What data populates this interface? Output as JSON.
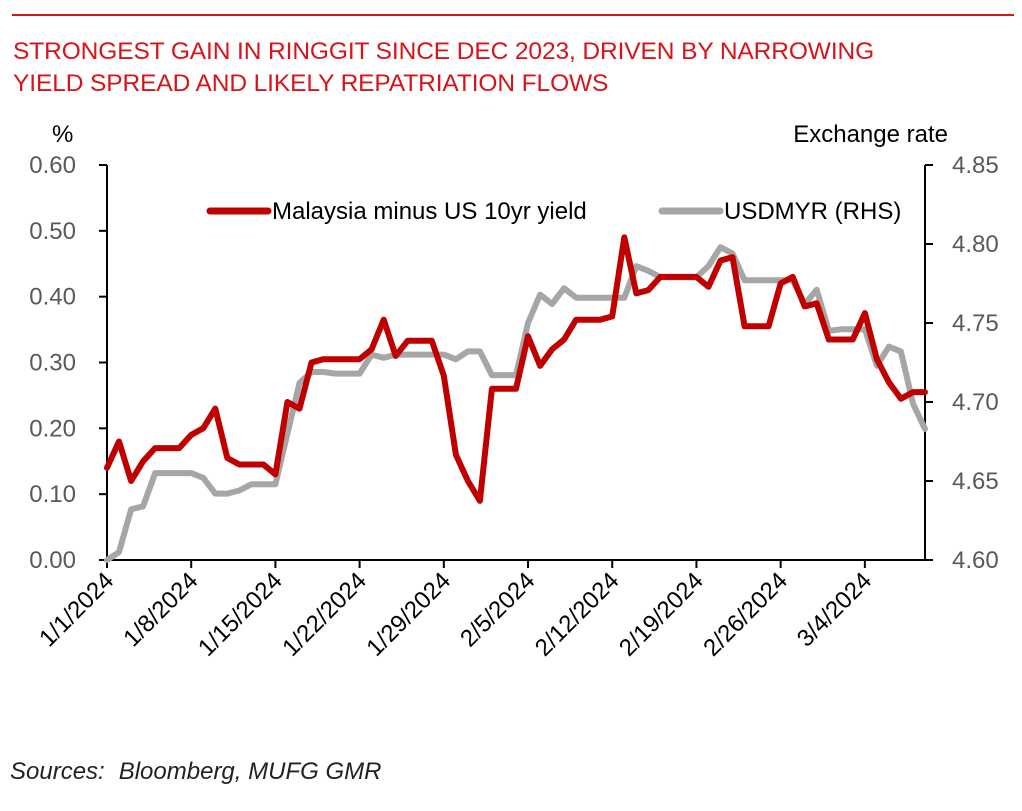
{
  "header": {
    "title_line1": "STRONGEST GAIN IN RINGGIT SINCE DEC 2023, DRIVEN BY NARROWING",
    "title_line2": "YIELD SPREAD AND LIKELY REPATRIATION FLOWS"
  },
  "footer": {
    "sources_label": "Sources:",
    "sources_text": "Bloomberg, MUFG GMR"
  },
  "colors": {
    "accent_red": "#d7141a",
    "series_spread": "#c00000",
    "series_usdmyr": "#a6a6a6",
    "axis": "#000000"
  },
  "chart_data": {
    "type": "line",
    "title": "STRONGEST GAIN IN RINGGIT SINCE DEC 2023, DRIVEN BY NARROWING YIELD SPREAD AND LIKELY REPATRIATION FLOWS",
    "ylabel_left": "%",
    "ylabel_right": "Exchange rate",
    "ylim_left": [
      0,
      0.6
    ],
    "ylim_right": [
      4.6,
      4.85
    ],
    "yticks_left": [
      "0.00",
      "0.10",
      "0.20",
      "0.30",
      "0.40",
      "0.50",
      "0.60"
    ],
    "yticks_right": [
      "4.60",
      "4.65",
      "4.70",
      "4.75",
      "4.80",
      "4.85"
    ],
    "xlim": [
      "2024-01-01",
      "2024-03-09"
    ],
    "xticks": [
      "1/1/2024",
      "1/8/2024",
      "1/15/2024",
      "1/22/2024",
      "1/29/2024",
      "2/5/2024",
      "2/12/2024",
      "2/19/2024",
      "2/26/2024",
      "3/4/2024"
    ],
    "grid": false,
    "legend_position": "top",
    "series": [
      {
        "name": "Malaysia minus US 10yr yield",
        "axis": "left",
        "x": [
          "2024-01-01",
          "2024-01-02",
          "2024-01-03",
          "2024-01-04",
          "2024-01-05",
          "2024-01-06",
          "2024-01-07",
          "2024-01-08",
          "2024-01-09",
          "2024-01-10",
          "2024-01-11",
          "2024-01-12",
          "2024-01-13",
          "2024-01-14",
          "2024-01-15",
          "2024-01-16",
          "2024-01-17",
          "2024-01-18",
          "2024-01-19",
          "2024-01-20",
          "2024-01-21",
          "2024-01-22",
          "2024-01-23",
          "2024-01-24",
          "2024-01-25",
          "2024-01-26",
          "2024-01-27",
          "2024-01-28",
          "2024-01-29",
          "2024-01-30",
          "2024-01-31",
          "2024-02-01",
          "2024-02-02",
          "2024-02-03",
          "2024-02-04",
          "2024-02-05",
          "2024-02-06",
          "2024-02-07",
          "2024-02-08",
          "2024-02-09",
          "2024-02-10",
          "2024-02-11",
          "2024-02-12",
          "2024-02-13",
          "2024-02-14",
          "2024-02-15",
          "2024-02-16",
          "2024-02-17",
          "2024-02-18",
          "2024-02-19",
          "2024-02-20",
          "2024-02-21",
          "2024-02-22",
          "2024-02-23",
          "2024-02-24",
          "2024-02-25",
          "2024-02-26",
          "2024-02-27",
          "2024-02-28",
          "2024-02-29",
          "2024-03-01",
          "2024-03-02",
          "2024-03-03",
          "2024-03-04",
          "2024-03-05",
          "2024-03-06",
          "2024-03-07",
          "2024-03-08",
          "2024-03-09"
        ],
        "values": [
          0.14,
          0.18,
          0.12,
          0.15,
          0.17,
          0.17,
          0.17,
          0.19,
          0.2,
          0.23,
          0.155,
          0.145,
          0.145,
          0.145,
          0.13,
          0.24,
          0.23,
          0.3,
          0.305,
          0.305,
          0.305,
          0.305,
          0.32,
          0.365,
          0.31,
          0.333,
          0.333,
          0.333,
          0.28,
          0.16,
          0.12,
          0.09,
          0.26,
          0.26,
          0.26,
          0.34,
          0.295,
          0.32,
          0.335,
          0.365,
          0.365,
          0.365,
          0.37,
          0.49,
          0.405,
          0.41,
          0.43,
          0.43,
          0.43,
          0.43,
          0.415,
          0.455,
          0.46,
          0.355,
          0.355,
          0.355,
          0.42,
          0.43,
          0.385,
          0.39,
          0.335,
          0.335,
          0.335,
          0.375,
          0.305,
          0.27,
          0.245,
          0.255,
          0.255
        ]
      },
      {
        "name": "USDMYR (RHS)",
        "axis": "right",
        "x": [
          "2024-01-01",
          "2024-01-02",
          "2024-01-03",
          "2024-01-04",
          "2024-01-05",
          "2024-01-06",
          "2024-01-07",
          "2024-01-08",
          "2024-01-09",
          "2024-01-10",
          "2024-01-11",
          "2024-01-12",
          "2024-01-13",
          "2024-01-14",
          "2024-01-15",
          "2024-01-16",
          "2024-01-17",
          "2024-01-18",
          "2024-01-19",
          "2024-01-20",
          "2024-01-21",
          "2024-01-22",
          "2024-01-23",
          "2024-01-24",
          "2024-01-25",
          "2024-01-26",
          "2024-01-27",
          "2024-01-28",
          "2024-01-29",
          "2024-01-30",
          "2024-01-31",
          "2024-02-01",
          "2024-02-02",
          "2024-02-03",
          "2024-02-04",
          "2024-02-05",
          "2024-02-06",
          "2024-02-07",
          "2024-02-08",
          "2024-02-09",
          "2024-02-10",
          "2024-02-11",
          "2024-02-12",
          "2024-02-13",
          "2024-02-14",
          "2024-02-15",
          "2024-02-16",
          "2024-02-17",
          "2024-02-18",
          "2024-02-19",
          "2024-02-20",
          "2024-02-21",
          "2024-02-22",
          "2024-02-23",
          "2024-02-24",
          "2024-02-25",
          "2024-02-26",
          "2024-02-27",
          "2024-02-28",
          "2024-02-29",
          "2024-03-01",
          "2024-03-02",
          "2024-03-03",
          "2024-03-04",
          "2024-03-05",
          "2024-03-06",
          "2024-03-07",
          "2024-03-08",
          "2024-03-09"
        ],
        "values": [
          4.6,
          4.605,
          4.632,
          4.634,
          4.655,
          4.655,
          4.655,
          4.655,
          4.652,
          4.642,
          4.642,
          4.644,
          4.648,
          4.648,
          4.648,
          4.68,
          4.712,
          4.719,
          4.719,
          4.718,
          4.718,
          4.718,
          4.73,
          4.728,
          4.73,
          4.73,
          4.73,
          4.73,
          4.73,
          4.727,
          4.732,
          4.732,
          4.717,
          4.717,
          4.717,
          4.75,
          4.768,
          4.762,
          4.772,
          4.766,
          4.766,
          4.766,
          4.766,
          4.766,
          4.786,
          4.783,
          4.779,
          4.779,
          4.779,
          4.779,
          4.786,
          4.798,
          4.794,
          4.777,
          4.777,
          4.777,
          4.777,
          4.777,
          4.762,
          4.771,
          4.745,
          4.746,
          4.746,
          4.746,
          4.723,
          4.735,
          4.732,
          4.699,
          4.683
        ]
      }
    ]
  }
}
